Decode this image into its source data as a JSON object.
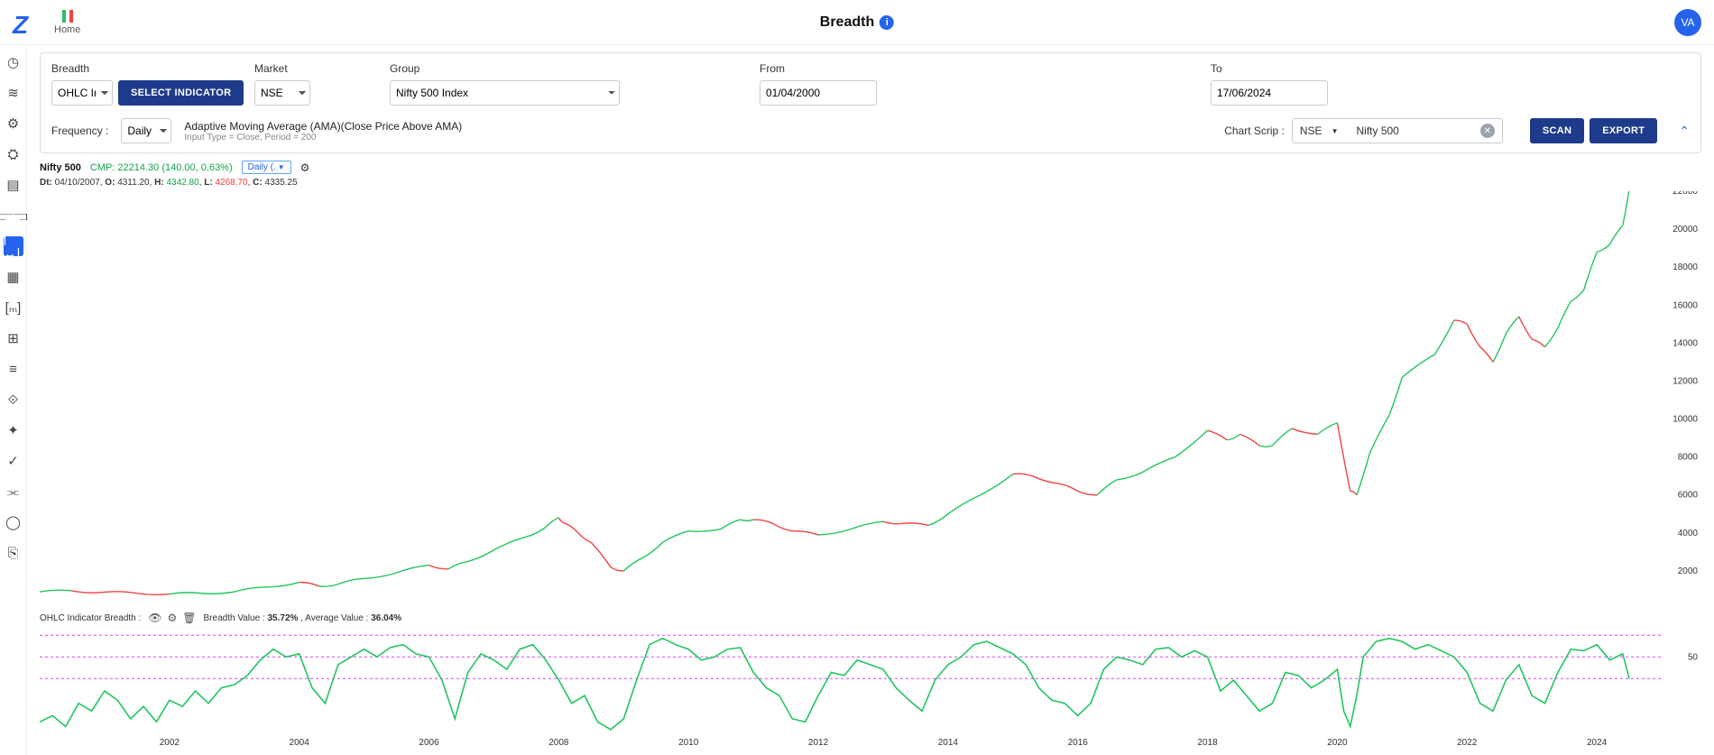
{
  "topbar": {
    "home_label": "Home",
    "page_title": "Breadth",
    "avatar_initials": "VA"
  },
  "sidebar": {
    "icons": [
      "clock",
      "chart",
      "gear",
      "gear2",
      "clipboard",
      "barchart",
      "hexpand",
      "table",
      "mbracket",
      "grid",
      "stack",
      "sparkle",
      "star",
      "check",
      "miniChart",
      "circle",
      "page"
    ],
    "active_index": 6
  },
  "filters": {
    "labels": {
      "breadth": "Breadth",
      "market": "Market",
      "group": "Group",
      "from": "From",
      "to": "To",
      "frequency": "Frequency :",
      "chart_scrip": "Chart Scrip :"
    },
    "breadth_value": "OHLC Indic",
    "select_indicator_btn": "SELECT INDICATOR",
    "market_value": "NSE",
    "group_value": "Nifty 500 Index",
    "from_value": "01/04/2000",
    "to_value": "17/06/2024",
    "frequency_value": "Daily",
    "ama_title": "Adaptive Moving Average (AMA)(Close Price Above AMA)",
    "ama_sub": "Input Type = Close, Period = 200",
    "scrip_market": "NSE",
    "scrip_name": "Nifty 500",
    "scan_btn": "SCAN",
    "export_btn": "EXPORT"
  },
  "price_chart": {
    "title": "Nifty 500",
    "cmp": "CMP: 22214.30 (140.00, 0.63%)",
    "freq_pill": "Daily (.",
    "ohlc": {
      "date": "04/10/2007",
      "o": "4311.20",
      "h": "4342.80",
      "l": "4268.70",
      "c": "4335.25"
    },
    "type": "line",
    "x_year_start": 2000,
    "x_year_end": 2025,
    "ylim": [
      0,
      22000
    ],
    "yticks": [
      2000,
      4000,
      6000,
      8000,
      10000,
      12000,
      14000,
      16000,
      18000,
      20000,
      22000
    ],
    "series_color_up": "#22c55e",
    "series_color_down": "#ef4444",
    "grid_color": "#eeeeee",
    "data_points": [
      [
        2000,
        900
      ],
      [
        2000.5,
        950
      ],
      [
        2001,
        880
      ],
      [
        2001.5,
        820
      ],
      [
        2002,
        780
      ],
      [
        2002.5,
        820
      ],
      [
        2003,
        900
      ],
      [
        2003.5,
        1150
      ],
      [
        2004,
        1400
      ],
      [
        2004.3,
        1200
      ],
      [
        2004.6,
        1300
      ],
      [
        2005,
        1600
      ],
      [
        2005.5,
        1900
      ],
      [
        2006,
        2300
      ],
      [
        2006.3,
        2100
      ],
      [
        2006.6,
        2500
      ],
      [
        2007,
        3100
      ],
      [
        2007.5,
        3800
      ],
      [
        2007.8,
        4300
      ],
      [
        2008,
        4800
      ],
      [
        2008.1,
        4500
      ],
      [
        2008.3,
        4000
      ],
      [
        2008.5,
        3500
      ],
      [
        2008.8,
        2200
      ],
      [
        2009,
        2000
      ],
      [
        2009.3,
        2700
      ],
      [
        2009.6,
        3500
      ],
      [
        2010,
        4100
      ],
      [
        2010.5,
        4200
      ],
      [
        2010.8,
        4700
      ],
      [
        2011,
        4700
      ],
      [
        2011.3,
        4500
      ],
      [
        2011.6,
        4100
      ],
      [
        2012,
        3900
      ],
      [
        2012.5,
        4200
      ],
      [
        2013,
        4600
      ],
      [
        2013.3,
        4500
      ],
      [
        2013.7,
        4400
      ],
      [
        2014,
        5000
      ],
      [
        2014.5,
        6000
      ],
      [
        2015,
        7100
      ],
      [
        2015.3,
        7000
      ],
      [
        2015.7,
        6600
      ],
      [
        2016,
        6200
      ],
      [
        2016.3,
        6000
      ],
      [
        2016.6,
        6800
      ],
      [
        2017,
        7200
      ],
      [
        2017.5,
        8000
      ],
      [
        2018,
        9400
      ],
      [
        2018.3,
        8900
      ],
      [
        2018.5,
        9200
      ],
      [
        2018.8,
        8600
      ],
      [
        2019,
        8600
      ],
      [
        2019.3,
        9500
      ],
      [
        2019.7,
        9200
      ],
      [
        2020,
        9800
      ],
      [
        2020.2,
        6200
      ],
      [
        2020.3,
        6000
      ],
      [
        2020.5,
        8200
      ],
      [
        2020.8,
        10200
      ],
      [
        2021,
        12200
      ],
      [
        2021.5,
        13400
      ],
      [
        2021.8,
        15200
      ],
      [
        2022,
        15000
      ],
      [
        2022.2,
        13800
      ],
      [
        2022.4,
        13000
      ],
      [
        2022.6,
        14500
      ],
      [
        2022.8,
        15400
      ],
      [
        2023,
        14200
      ],
      [
        2023.2,
        13800
      ],
      [
        2023.4,
        14800
      ],
      [
        2023.6,
        16200
      ],
      [
        2023.8,
        16800
      ],
      [
        2024,
        18800
      ],
      [
        2024.2,
        19200
      ],
      [
        2024.4,
        20200
      ],
      [
        2024.5,
        22100
      ]
    ]
  },
  "breadth_chart": {
    "label": "OHLC Indicator Breadth :",
    "breadth_value": "35.72%",
    "average_value": "36.04%",
    "ylim": [
      0,
      70
    ],
    "yticks": [
      50
    ],
    "ref_lines": [
      36,
      50,
      64
    ],
    "ref_color": "#d946ef",
    "line_color": "#22c55e",
    "type": "line",
    "data_points": [
      [
        2000,
        8
      ],
      [
        2000.2,
        12
      ],
      [
        2000.4,
        5
      ],
      [
        2000.6,
        20
      ],
      [
        2000.8,
        15
      ],
      [
        2001,
        28
      ],
      [
        2001.2,
        22
      ],
      [
        2001.4,
        10
      ],
      [
        2001.6,
        18
      ],
      [
        2001.8,
        8
      ],
      [
        2002,
        22
      ],
      [
        2002.2,
        18
      ],
      [
        2002.4,
        28
      ],
      [
        2002.6,
        20
      ],
      [
        2002.8,
        30
      ],
      [
        2003,
        32
      ],
      [
        2003.2,
        38
      ],
      [
        2003.4,
        48
      ],
      [
        2003.6,
        55
      ],
      [
        2003.8,
        50
      ],
      [
        2004,
        52
      ],
      [
        2004.2,
        30
      ],
      [
        2004.4,
        20
      ],
      [
        2004.6,
        45
      ],
      [
        2004.8,
        50
      ],
      [
        2005,
        55
      ],
      [
        2005.2,
        50
      ],
      [
        2005.4,
        56
      ],
      [
        2005.6,
        58
      ],
      [
        2005.8,
        52
      ],
      [
        2006,
        50
      ],
      [
        2006.2,
        35
      ],
      [
        2006.4,
        10
      ],
      [
        2006.6,
        40
      ],
      [
        2006.8,
        52
      ],
      [
        2007,
        48
      ],
      [
        2007.2,
        42
      ],
      [
        2007.4,
        55
      ],
      [
        2007.6,
        58
      ],
      [
        2007.8,
        48
      ],
      [
        2008,
        35
      ],
      [
        2008.2,
        20
      ],
      [
        2008.4,
        25
      ],
      [
        2008.6,
        8
      ],
      [
        2008.8,
        3
      ],
      [
        2009,
        10
      ],
      [
        2009.2,
        35
      ],
      [
        2009.4,
        58
      ],
      [
        2009.6,
        62
      ],
      [
        2009.8,
        58
      ],
      [
        2010,
        55
      ],
      [
        2010.2,
        48
      ],
      [
        2010.4,
        50
      ],
      [
        2010.6,
        55
      ],
      [
        2010.8,
        56
      ],
      [
        2011,
        40
      ],
      [
        2011.2,
        30
      ],
      [
        2011.4,
        25
      ],
      [
        2011.6,
        10
      ],
      [
        2011.8,
        8
      ],
      [
        2012,
        25
      ],
      [
        2012.2,
        40
      ],
      [
        2012.4,
        38
      ],
      [
        2012.6,
        48
      ],
      [
        2012.8,
        45
      ],
      [
        2013,
        42
      ],
      [
        2013.2,
        30
      ],
      [
        2013.4,
        22
      ],
      [
        2013.6,
        15
      ],
      [
        2013.8,
        35
      ],
      [
        2014,
        45
      ],
      [
        2014.2,
        50
      ],
      [
        2014.4,
        58
      ],
      [
        2014.6,
        60
      ],
      [
        2014.8,
        56
      ],
      [
        2015,
        52
      ],
      [
        2015.2,
        45
      ],
      [
        2015.4,
        30
      ],
      [
        2015.6,
        22
      ],
      [
        2015.8,
        20
      ],
      [
        2016,
        12
      ],
      [
        2016.2,
        20
      ],
      [
        2016.4,
        42
      ],
      [
        2016.6,
        50
      ],
      [
        2016.8,
        48
      ],
      [
        2017,
        45
      ],
      [
        2017.2,
        55
      ],
      [
        2017.4,
        56
      ],
      [
        2017.6,
        50
      ],
      [
        2017.8,
        54
      ],
      [
        2018,
        50
      ],
      [
        2018.2,
        28
      ],
      [
        2018.4,
        35
      ],
      [
        2018.6,
        25
      ],
      [
        2018.8,
        15
      ],
      [
        2019,
        20
      ],
      [
        2019.2,
        40
      ],
      [
        2019.4,
        38
      ],
      [
        2019.6,
        30
      ],
      [
        2019.8,
        35
      ],
      [
        2020,
        42
      ],
      [
        2020.1,
        15
      ],
      [
        2020.2,
        5
      ],
      [
        2020.3,
        25
      ],
      [
        2020.4,
        50
      ],
      [
        2020.6,
        60
      ],
      [
        2020.8,
        62
      ],
      [
        2021,
        60
      ],
      [
        2021.2,
        55
      ],
      [
        2021.4,
        58
      ],
      [
        2021.6,
        54
      ],
      [
        2021.8,
        50
      ],
      [
        2022,
        40
      ],
      [
        2022.2,
        20
      ],
      [
        2022.4,
        15
      ],
      [
        2022.6,
        35
      ],
      [
        2022.8,
        45
      ],
      [
        2023,
        25
      ],
      [
        2023.2,
        20
      ],
      [
        2023.4,
        40
      ],
      [
        2023.6,
        55
      ],
      [
        2023.8,
        54
      ],
      [
        2024,
        58
      ],
      [
        2024.2,
        48
      ],
      [
        2024.4,
        52
      ],
      [
        2024.5,
        36
      ]
    ]
  },
  "xaxis": {
    "ticks": [
      2002,
      2004,
      2006,
      2008,
      2010,
      2012,
      2014,
      2016,
      2018,
      2020,
      2022,
      2024
    ]
  },
  "colors": {
    "primary": "#1e3a8a",
    "accent": "#2563eb",
    "up": "#22c55e",
    "down": "#ef4444",
    "magenta": "#d946ef"
  }
}
